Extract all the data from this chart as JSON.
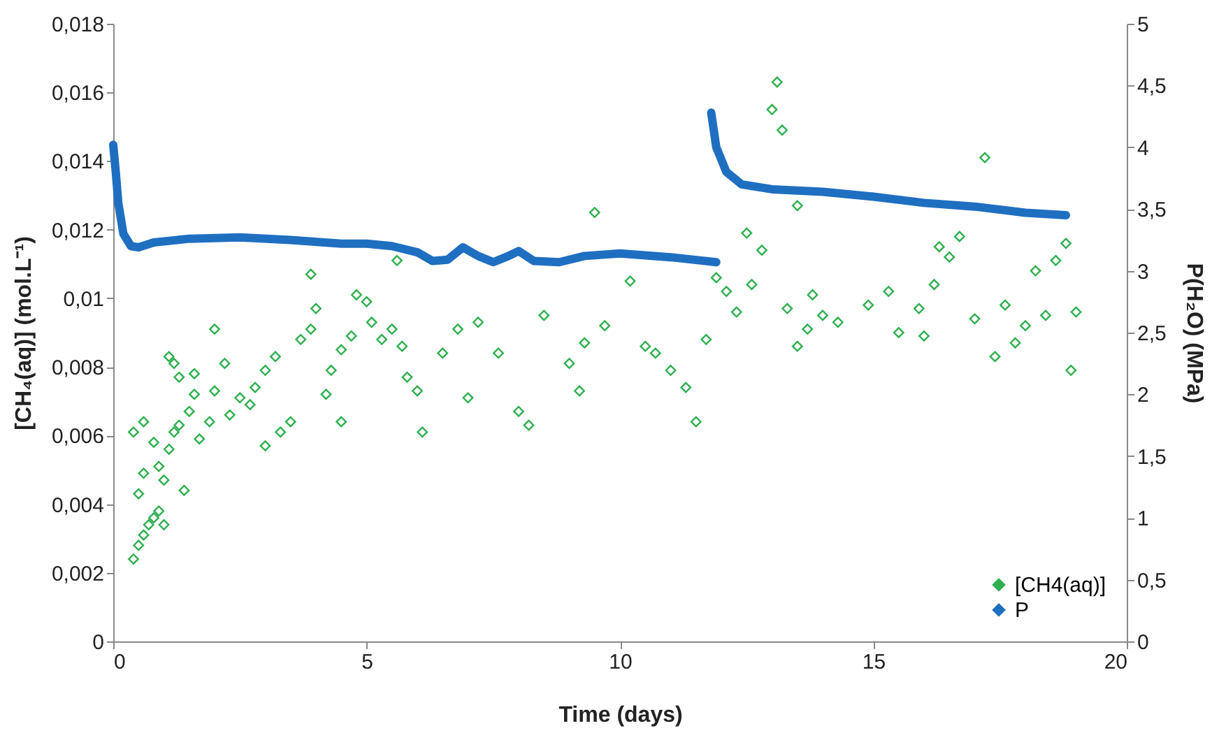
{
  "chart_data": {
    "type": "scatter",
    "xlabel": "Time (days)",
    "ylabel": "[CH₄(aq)] (mol.L⁻¹)",
    "y2label": "P(H₂O) (MPa)",
    "xlim": [
      0,
      20
    ],
    "xticks": [
      0,
      5,
      10,
      15,
      20
    ],
    "ylim": [
      0,
      0.018
    ],
    "yticks": [
      {
        "value": 0,
        "label": "0"
      },
      {
        "value": 0.002,
        "label": "0,002"
      },
      {
        "value": 0.004,
        "label": "0,004"
      },
      {
        "value": 0.006,
        "label": "0,006"
      },
      {
        "value": 0.008,
        "label": "0,008"
      },
      {
        "value": 0.01,
        "label": "0,01"
      },
      {
        "value": 0.012,
        "label": "0,012"
      },
      {
        "value": 0.014,
        "label": "0,014"
      },
      {
        "value": 0.016,
        "label": "0,016"
      },
      {
        "value": 0.018,
        "label": "0,018"
      }
    ],
    "y2lim": [
      0,
      5
    ],
    "y2ticks": [
      0,
      {
        "value": 0.5,
        "label": "0,5"
      },
      1,
      {
        "value": 1.5,
        "label": "1,5"
      },
      2,
      {
        "value": 2.5,
        "label": "2,5"
      },
      3,
      {
        "value": 3.5,
        "label": "3,5"
      },
      4,
      {
        "value": 4.5,
        "label": "4,5"
      },
      5
    ],
    "grid": false,
    "legend": "bottom right",
    "series": [
      {
        "name": "[CH4(aq)]",
        "marker": "diamond",
        "color": "#2eb04f",
        "x": [
          0.4,
          0.5,
          0.6,
          0.7,
          0.8,
          0.9,
          1.0,
          0.5,
          0.6,
          0.4,
          0.6,
          0.8,
          0.9,
          1.0,
          1.1,
          1.2,
          1.3,
          1.5,
          1.6,
          1.3,
          1.1,
          1.2,
          1.6,
          1.4,
          1.7,
          1.9,
          2.0,
          2.2,
          2.0,
          2.3,
          2.5,
          2.7,
          2.8,
          3.0,
          3.2,
          3.0,
          3.3,
          3.5,
          3.7,
          3.9,
          4.0,
          3.9,
          4.2,
          4.3,
          4.5,
          4.7,
          4.5,
          4.8,
          5.0,
          5.1,
          5.3,
          5.5,
          5.7,
          5.6,
          5.8,
          6.0,
          6.1,
          6.5,
          6.8,
          7.0,
          7.2,
          7.6,
          8.0,
          8.2,
          8.5,
          9.0,
          9.2,
          9.5,
          9.3,
          9.7,
          10.2,
          10.5,
          10.7,
          11.0,
          11.3,
          11.5,
          11.7,
          11.9,
          12.1,
          12.3,
          12.5,
          12.6,
          12.8,
          13.0,
          13.1,
          13.2,
          13.3,
          13.5,
          13.7,
          13.5,
          13.8,
          14.0,
          14.3,
          14.9,
          15.3,
          15.9,
          16.0,
          16.2,
          16.5,
          16.7,
          17.0,
          17.2,
          17.4,
          17.6,
          18.0,
          18.2,
          18.4,
          18.6,
          18.8,
          18.9,
          19.0,
          15.5,
          16.3,
          17.8
        ],
        "values": [
          0.0024,
          0.0028,
          0.0031,
          0.0034,
          0.0036,
          0.0038,
          0.0034,
          0.0043,
          0.0049,
          0.0061,
          0.0064,
          0.0058,
          0.0051,
          0.0047,
          0.0056,
          0.0061,
          0.0063,
          0.0067,
          0.0072,
          0.0077,
          0.0083,
          0.0081,
          0.0078,
          0.0044,
          0.0059,
          0.0064,
          0.0073,
          0.0081,
          0.0091,
          0.0066,
          0.0071,
          0.0069,
          0.0074,
          0.0079,
          0.0083,
          0.0057,
          0.0061,
          0.0064,
          0.0088,
          0.0091,
          0.0097,
          0.0107,
          0.0072,
          0.0079,
          0.0085,
          0.0089,
          0.0064,
          0.0101,
          0.0099,
          0.0093,
          0.0088,
          0.0091,
          0.0086,
          0.0111,
          0.0077,
          0.0073,
          0.0061,
          0.0084,
          0.0091,
          0.0071,
          0.0093,
          0.0084,
          0.0067,
          0.0063,
          0.0095,
          0.0081,
          0.0073,
          0.0125,
          0.0087,
          0.0092,
          0.0105,
          0.0086,
          0.0084,
          0.0079,
          0.0074,
          0.0064,
          0.0088,
          0.0106,
          0.0102,
          0.0096,
          0.0119,
          0.0104,
          0.0114,
          0.0155,
          0.0163,
          0.0149,
          0.0097,
          0.0086,
          0.0091,
          0.0127,
          0.0101,
          0.0095,
          0.0093,
          0.0098,
          0.0102,
          0.0097,
          0.0089,
          0.0104,
          0.0112,
          0.0118,
          0.0094,
          0.0141,
          0.0083,
          0.0098,
          0.0092,
          0.0108,
          0.0095,
          0.0111,
          0.0116,
          0.0079,
          0.0096,
          0.009,
          0.0115,
          0.0087
        ]
      },
      {
        "name": "P",
        "type": "line",
        "axis": "y2",
        "marker": "diamond",
        "line_style": "solid",
        "color": "#1f6fc1",
        "x": [
          0,
          0.05,
          0.1,
          0.2,
          0.35,
          0.5,
          0.8,
          1.5,
          2.5,
          3.5,
          4.5,
          5,
          5.5,
          6,
          6.3,
          6.6,
          6.9,
          7.2,
          7.5,
          7.8,
          8.0,
          8.3,
          8.8,
          9.3,
          10,
          11,
          11.9,
          11.85,
          11.8,
          11.9,
          12.1,
          12.4,
          13,
          14,
          15,
          16,
          17,
          18,
          18.8
        ],
        "values": [
          4.02,
          3.8,
          3.55,
          3.3,
          3.2,
          3.19,
          3.23,
          3.26,
          3.27,
          3.25,
          3.22,
          3.22,
          3.2,
          3.15,
          3.08,
          3.09,
          3.19,
          3.12,
          3.07,
          3.12,
          3.16,
          3.08,
          3.07,
          3.12,
          3.14,
          3.11,
          3.07,
          null,
          4.28,
          4.0,
          3.8,
          3.7,
          3.66,
          3.64,
          3.6,
          3.55,
          3.52,
          3.47,
          3.45
        ]
      }
    ]
  }
}
